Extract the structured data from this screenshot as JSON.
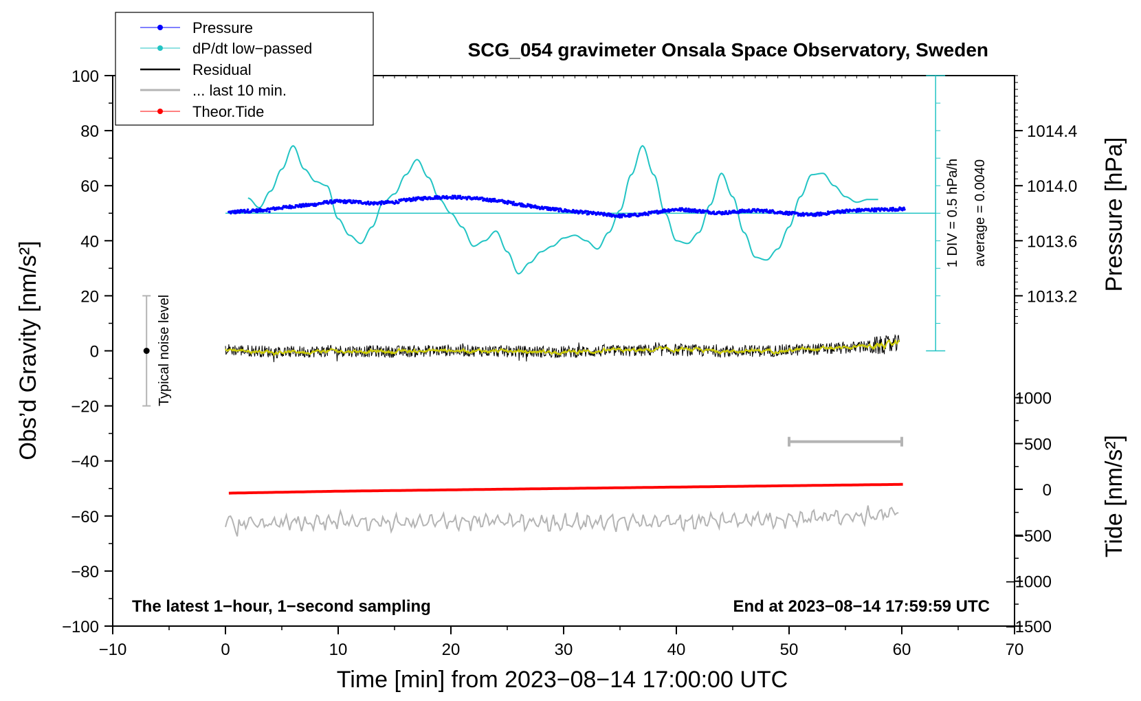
{
  "chart_data": {
    "type": "line",
    "title": "SCG_054 gravimeter Onsala Space Observatory, Sweden",
    "xlabel": "Time [min] from 2023−08−14 17:00:00 UTC",
    "ylabel_left": "Obs’d Gravity [nm/s²]",
    "ylabel_right_pressure": "Pressure [hPa]",
    "ylabel_right_tide": "Tide [nm/s²]",
    "xlim": [
      -10,
      70
    ],
    "ylim_left": [
      -100,
      100
    ],
    "x_ticks": [
      -10,
      0,
      10,
      20,
      30,
      40,
      50,
      60,
      70
    ],
    "x_tick_labels": [
      "−10",
      "0",
      "10",
      "20",
      "30",
      "40",
      "50",
      "60",
      "70"
    ],
    "y_ticks": [
      100,
      80,
      60,
      40,
      20,
      0,
      -20,
      -40,
      -60,
      -80,
      -100
    ],
    "y_tick_labels": [
      "100",
      "80",
      "60",
      "40",
      "20",
      "0",
      "−20",
      "−40",
      "−60",
      "−80",
      "−100"
    ],
    "pressure_axis": {
      "ticks": [
        1014.4,
        1014.0,
        1013.6,
        1013.2
      ],
      "tick_labels": [
        "1014.4",
        "1014.0",
        "1013.6",
        "1013.2"
      ],
      "gravity_equivalent": [
        80,
        60,
        40,
        20
      ]
    },
    "tide_axis": {
      "ticks": [
        1000,
        500,
        0,
        -500,
        -1000,
        -1500
      ],
      "tick_labels": [
        "1000",
        "500",
        "0",
        "−500",
        "−1000",
        "−1500"
      ],
      "gravity_equivalent": [
        -17,
        -33.7,
        -50.3,
        -67,
        -83.7,
        -100
      ]
    },
    "legend": {
      "position": "top-left",
      "entries": [
        "Pressure",
        "dP/dt low−passed",
        "Residual",
        "... last 10 min.",
        "Theor.Tide"
      ]
    },
    "annotations": {
      "left_info": "The latest 1−hour, 1−second sampling",
      "right_info": "End at 2023−08−14 17:59:59 UTC",
      "noise_label": "Typical noise level",
      "div_label": "1 DIV = 0.5 hPa/h",
      "average_label": "average = 0.0040"
    },
    "colors": {
      "pressure": "#0000ff",
      "dpdt": "#22c4c4",
      "residual": "#000000",
      "residual_smooth": "#cccc00",
      "last10": "#b4b4b4",
      "tide": "#ff0000"
    },
    "noise_bar": {
      "x": -7,
      "y_min": -20,
      "y_max": 20
    },
    "dpdt_scale": {
      "x": 63,
      "y_min": 0,
      "y_max": 100,
      "baseline": 50
    },
    "last10_bar": {
      "x_start": 50,
      "x_end": 60,
      "y": -33
    },
    "series": [
      {
        "name": "Pressure",
        "x": [
          0.3,
          1,
          2,
          3,
          4,
          5,
          6,
          7,
          8,
          9,
          10,
          11,
          12,
          13,
          14,
          15,
          16,
          17,
          18,
          19,
          20,
          21,
          22,
          23,
          24,
          25,
          26,
          27,
          28,
          29,
          30,
          31,
          32,
          33,
          34,
          35,
          36,
          37,
          38,
          39,
          40,
          41,
          42,
          43,
          44,
          45,
          46,
          47,
          48,
          49,
          50,
          51,
          52,
          53,
          54,
          55,
          56,
          57,
          58,
          59,
          60.3
        ],
        "values": [
          50.3,
          50.5,
          50.8,
          51.0,
          51.5,
          52.0,
          52.5,
          52.8,
          53.2,
          54.0,
          54.3,
          54.2,
          54.0,
          53.6,
          53.8,
          54.0,
          54.8,
          55.2,
          55.6,
          55.8,
          55.9,
          55.7,
          55.4,
          55.0,
          54.6,
          54.0,
          53.3,
          52.6,
          52.0,
          51.5,
          51.0,
          50.6,
          50.2,
          49.8,
          49.4,
          49.0,
          49.2,
          49.6,
          50.2,
          51.0,
          51.4,
          51.2,
          50.8,
          50.4,
          50.1,
          50.4,
          50.8,
          51.0,
          50.8,
          50.4,
          50.0,
          49.6,
          49.4,
          49.8,
          50.4,
          50.8,
          51.0,
          51.2,
          51.3,
          51.4,
          51.6
        ]
      },
      {
        "name": "dP/dt low−passed",
        "x": [
          2,
          3,
          4,
          5,
          6,
          7,
          8,
          9,
          10,
          11,
          12,
          13,
          14,
          15,
          16,
          17,
          18,
          19,
          20,
          21,
          22,
          23,
          24,
          25,
          26,
          27,
          28,
          29,
          30,
          31,
          32,
          33,
          34,
          35,
          36,
          37,
          38,
          39,
          40,
          41,
          42,
          43,
          44,
          45,
          46,
          47,
          48,
          49,
          50,
          51,
          52,
          53,
          54,
          55,
          56,
          57,
          58
        ],
        "values": [
          55.5,
          52,
          58,
          66,
          74.5,
          66,
          61.5,
          60,
          48,
          42,
          39,
          45,
          54,
          57,
          64,
          69.5,
          63,
          55,
          50,
          45,
          38,
          40,
          43.5,
          36,
          28,
          32,
          36,
          38,
          41,
          42,
          40,
          37,
          43,
          51,
          64,
          74.5,
          64,
          50,
          40,
          39,
          43,
          53,
          64.5,
          56,
          43,
          34,
          33,
          37,
          45,
          56,
          64,
          64.5,
          60,
          56,
          54,
          55,
          55
        ]
      },
      {
        "name": "Residual",
        "x": [
          0,
          5,
          10,
          15,
          20,
          25,
          30,
          35,
          40,
          45,
          50,
          55,
          60
        ],
        "values": [
          0.5,
          -0.5,
          0,
          -0.3,
          0.2,
          -0.2,
          -0.4,
          0,
          0.3,
          -0.2,
          0.2,
          1.0,
          2.5
        ]
      },
      {
        "name": "... last 10 min.",
        "x": [
          0,
          5,
          10,
          15,
          20,
          25,
          30,
          35,
          40,
          45,
          50,
          55,
          60
        ],
        "values": [
          -63,
          -62.5,
          -62,
          -62.5,
          -62,
          -62,
          -62.5,
          -62,
          -62,
          -61.5,
          -61,
          -60,
          -59
        ]
      },
      {
        "name": "Theor.Tide",
        "x": [
          0.3,
          10,
          20,
          30,
          40,
          50,
          60.3
        ],
        "values": [
          -51.7,
          -51,
          -50.5,
          -50,
          -49.5,
          -49,
          -48.5
        ]
      }
    ]
  }
}
